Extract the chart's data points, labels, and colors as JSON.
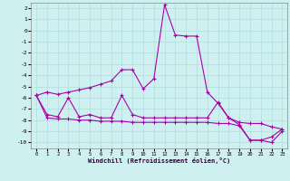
{
  "xlabel": "Windchill (Refroidissement éolien,°C)",
  "xlim": [
    -0.5,
    23.5
  ],
  "ylim": [
    -10.5,
    2.5
  ],
  "yticks": [
    2,
    1,
    0,
    -1,
    -2,
    -3,
    -4,
    -5,
    -6,
    -7,
    -8,
    -9,
    -10
  ],
  "xticks": [
    0,
    1,
    2,
    3,
    4,
    5,
    6,
    7,
    8,
    9,
    10,
    11,
    12,
    13,
    14,
    15,
    16,
    17,
    18,
    19,
    20,
    21,
    22,
    23
  ],
  "bg_color": "#cff0f0",
  "grid_color": "#b0dede",
  "line_color": "#aa00aa",
  "line1_x": [
    0,
    1,
    2,
    3,
    4,
    5,
    6,
    7,
    8,
    9,
    10,
    11,
    12,
    13,
    14,
    15,
    16,
    17,
    18,
    19,
    20,
    21,
    22,
    23
  ],
  "line1_y": [
    -5.8,
    -5.5,
    -5.7,
    -5.5,
    -5.3,
    -5.1,
    -4.8,
    -4.5,
    -3.5,
    -3.5,
    -5.2,
    -4.3,
    2.3,
    -0.4,
    -0.5,
    -0.5,
    -5.5,
    -6.5,
    -7.8,
    -8.2,
    -8.3,
    -8.3,
    -8.6,
    -8.8
  ],
  "line2_x": [
    0,
    1,
    2,
    3,
    4,
    5,
    6,
    7,
    8,
    9,
    10,
    11,
    12,
    13,
    14,
    15,
    16,
    17,
    18,
    19,
    20,
    21,
    22,
    23
  ],
  "line2_y": [
    -5.8,
    -7.5,
    -7.7,
    -6.0,
    -7.7,
    -7.5,
    -7.8,
    -7.8,
    -5.8,
    -7.5,
    -7.8,
    -7.8,
    -7.8,
    -7.8,
    -7.8,
    -7.8,
    -7.8,
    -6.4,
    -7.8,
    -8.4,
    -9.8,
    -9.8,
    -10.0,
    -9.0
  ],
  "line3_x": [
    0,
    1,
    2,
    3,
    4,
    5,
    6,
    7,
    8,
    9,
    10,
    11,
    12,
    13,
    14,
    15,
    16,
    17,
    18,
    19,
    20,
    21,
    22,
    23
  ],
  "line3_y": [
    -5.8,
    -7.8,
    -7.9,
    -7.9,
    -8.0,
    -8.0,
    -8.1,
    -8.1,
    -8.1,
    -8.2,
    -8.2,
    -8.2,
    -8.2,
    -8.2,
    -8.2,
    -8.2,
    -8.2,
    -8.3,
    -8.3,
    -8.5,
    -9.8,
    -9.8,
    -9.5,
    -8.8
  ]
}
